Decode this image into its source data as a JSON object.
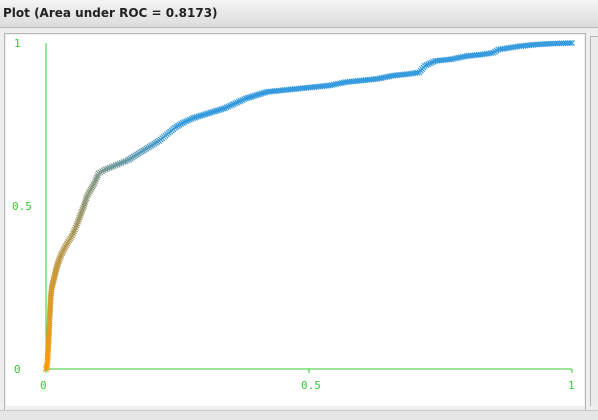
{
  "window": {
    "title": "Plot (Area under ROC = 0.8173)"
  },
  "colors": {
    "axis": "#33cc33",
    "curve_start": "#ff9900",
    "curve_end": "#3399dd",
    "background": "#ffffff"
  },
  "chart_data": {
    "type": "scatter",
    "title": "Plot (Area under ROC = 0.8173)",
    "xlabel": "",
    "ylabel": "",
    "xlim": [
      0,
      1
    ],
    "ylim": [
      0,
      1
    ],
    "grid": false,
    "x_ticks": [
      "0",
      "0.5",
      "1"
    ],
    "y_ticks": [
      "0",
      "0.5",
      "1"
    ],
    "marker": "x",
    "points": [
      [
        0,
        0
      ],
      [
        0.002,
        0.01
      ],
      [
        0.003,
        0.03
      ],
      [
        0.004,
        0.06
      ],
      [
        0.005,
        0.09
      ],
      [
        0.006,
        0.12
      ],
      [
        0.007,
        0.16
      ],
      [
        0.008,
        0.19
      ],
      [
        0.009,
        0.22
      ],
      [
        0.011,
        0.25
      ],
      [
        0.014,
        0.27
      ],
      [
        0.017,
        0.29
      ],
      [
        0.02,
        0.31
      ],
      [
        0.024,
        0.33
      ],
      [
        0.029,
        0.35
      ],
      [
        0.035,
        0.37
      ],
      [
        0.042,
        0.39
      ],
      [
        0.05,
        0.41
      ],
      [
        0.058,
        0.44
      ],
      [
        0.065,
        0.47
      ],
      [
        0.072,
        0.5
      ],
      [
        0.078,
        0.53
      ],
      [
        0.085,
        0.55
      ],
      [
        0.092,
        0.57
      ],
      [
        0.1,
        0.6
      ],
      [
        0.11,
        0.61
      ],
      [
        0.125,
        0.62
      ],
      [
        0.14,
        0.63
      ],
      [
        0.155,
        0.64
      ],
      [
        0.17,
        0.655
      ],
      [
        0.185,
        0.67
      ],
      [
        0.2,
        0.685
      ],
      [
        0.215,
        0.7
      ],
      [
        0.23,
        0.72
      ],
      [
        0.245,
        0.74
      ],
      [
        0.26,
        0.755
      ],
      [
        0.28,
        0.77
      ],
      [
        0.3,
        0.78
      ],
      [
        0.32,
        0.79
      ],
      [
        0.34,
        0.8
      ],
      [
        0.36,
        0.815
      ],
      [
        0.38,
        0.83
      ],
      [
        0.4,
        0.84
      ],
      [
        0.42,
        0.85
      ],
      [
        0.45,
        0.855
      ],
      [
        0.48,
        0.86
      ],
      [
        0.51,
        0.865
      ],
      [
        0.54,
        0.87
      ],
      [
        0.57,
        0.88
      ],
      [
        0.6,
        0.885
      ],
      [
        0.63,
        0.89
      ],
      [
        0.66,
        0.9
      ],
      [
        0.69,
        0.905
      ],
      [
        0.71,
        0.91
      ],
      [
        0.72,
        0.93
      ],
      [
        0.74,
        0.945
      ],
      [
        0.77,
        0.95
      ],
      [
        0.8,
        0.96
      ],
      [
        0.83,
        0.965
      ],
      [
        0.85,
        0.97
      ],
      [
        0.86,
        0.98
      ],
      [
        0.88,
        0.985
      ],
      [
        0.9,
        0.99
      ],
      [
        0.93,
        0.995
      ],
      [
        0.96,
        0.998
      ],
      [
        1,
        1
      ]
    ]
  }
}
